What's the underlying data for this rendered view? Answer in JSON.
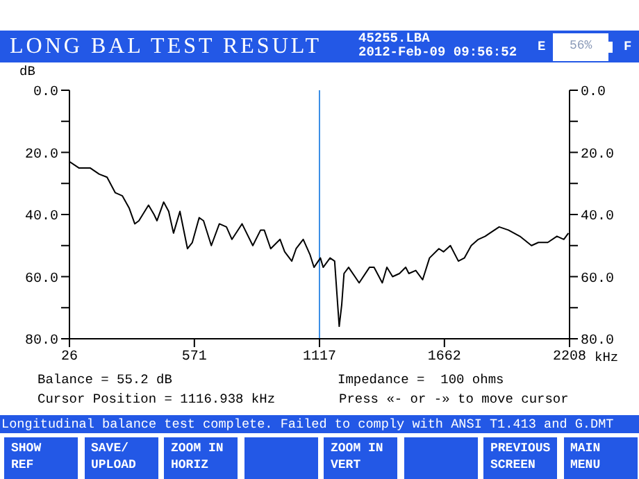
{
  "chart_data": {
    "type": "line",
    "title": "LONG BAL TEST RESULT",
    "ylabel": "dB",
    "xlabel": "kHz",
    "annotations": [
      "45255.LBA",
      "2012-Feb-09 09:56:52",
      "E",
      "56%",
      "F",
      "Balance = 55.2 dB",
      "Impedance =  100 ohms",
      "Cursor Position = 1116.938 kHz",
      "Press «- or -» to move cursor",
      "Longitudinal balance test complete. Failed to comply with ANSI T1.413 and G.DMT",
      "SHOW\nREF",
      "SAVE/\nUPLOAD",
      "ZOOM IN\nHORIZ",
      "ZOOM IN\nVERT",
      "PREVIOUS\nSCREEN",
      "MAIN\nMENU"
    ],
    "x": [
      26,
      67,
      116,
      156,
      190,
      226,
      257,
      287,
      311,
      329,
      371,
      395,
      408,
      437,
      459,
      480,
      508,
      541,
      562,
      592,
      611,
      645,
      680,
      711,
      735,
      779,
      826,
      860,
      876,
      904,
      945,
      965,
      996,
      1015,
      1046,
      1076,
      1093,
      1121,
      1133,
      1163,
      1183,
      1203,
      1214,
      1224,
      1244,
      1290,
      1335,
      1355,
      1391,
      1411,
      1436,
      1466,
      1493,
      1507,
      1537,
      1567,
      1597,
      1638,
      1658,
      1688,
      1723,
      1749,
      1779,
      1810,
      1840,
      1860,
      1901,
      1941,
      1991,
      2042,
      2072,
      2113,
      2153,
      2183,
      2203
    ],
    "series": [
      {
        "color": "#000000",
        "values": [
          23,
          25,
          25,
          27,
          28,
          33,
          34,
          38,
          43,
          42,
          37,
          40,
          42,
          36,
          39,
          46,
          39,
          51,
          49,
          41,
          42,
          50,
          43,
          44,
          48,
          43,
          50,
          45,
          45,
          51,
          48,
          52,
          55,
          51,
          48,
          53,
          57,
          54,
          57,
          54,
          55,
          76,
          69,
          59,
          57,
          62,
          57,
          57,
          62,
          57,
          60,
          59,
          57,
          59,
          58,
          61,
          54,
          51,
          52,
          50,
          55,
          54,
          50,
          48,
          47,
          46,
          44,
          45,
          47,
          50,
          49,
          49,
          47,
          48,
          46
        ]
      }
    ],
    "xlim": [
      26,
      2208
    ],
    "xticks": [
      26,
      571,
      1117,
      1662,
      2208
    ],
    "ylim": [
      80,
      0
    ],
    "yticks": [
      {
        "value": 0,
        "label": "0.0"
      },
      {
        "value": 10,
        "label": null
      },
      {
        "value": 20,
        "label": "20.0"
      },
      {
        "value": 30,
        "label": null
      },
      {
        "value": 40,
        "label": "40.0"
      },
      {
        "value": 50,
        "label": null
      },
      {
        "value": 60,
        "label": "60.0"
      },
      {
        "value": 70,
        "label": null
      },
      {
        "value": 80,
        "label": "80.0"
      }
    ],
    "y2lim": [
      80,
      0
    ],
    "y2ticks": [
      {
        "value": 0,
        "label": "0.0"
      },
      {
        "value": 10,
        "label": null
      },
      {
        "value": 20,
        "label": "20.0"
      },
      {
        "value": 30,
        "label": null
      },
      {
        "value": 40,
        "label": "40.0"
      },
      {
        "value": 50,
        "label": null
      },
      {
        "value": 60,
        "label": "60.0"
      },
      {
        "value": 70,
        "label": null
      },
      {
        "value": 80,
        "label": "80.0"
      }
    ],
    "ref_lines": [
      {
        "axis": "x",
        "value": 1116.938,
        "color": "#3a8ee6"
      }
    ],
    "grid": false,
    "legend": false,
    "marker": "none",
    "line_style": "solid"
  }
}
